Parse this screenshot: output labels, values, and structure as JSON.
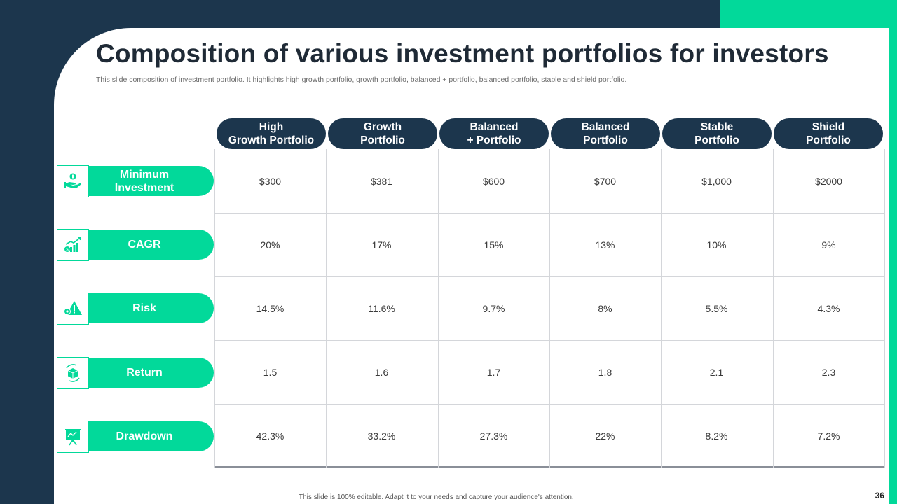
{
  "slide": {
    "title": "Composition of various investment portfolios for investors",
    "subtitle": "This slide composition of investment portfolio. It highlights high growth portfolio, growth portfolio, balanced + portfolio, balanced portfolio, stable and shield portfolio.",
    "footer": "This slide is 100% editable. Adapt it to your needs and capture your audience's attention.",
    "page_number": "36"
  },
  "colors": {
    "navy": "#1c364d",
    "green": "#02d99a"
  },
  "table": {
    "columns": [
      "High\nGrowth Portfolio",
      "Growth\nPortfolio",
      "Balanced\n+ Portfolio",
      "Balanced\nPortfolio",
      "Stable\nPortfolio",
      "Shield\nPortfolio"
    ],
    "rows": [
      {
        "label": "Minimum\nInvestment",
        "icon": "money-hand-icon",
        "values": [
          "$300",
          "$381",
          "$600",
          "$700",
          "$1,000",
          "$2000"
        ]
      },
      {
        "label": "CAGR",
        "icon": "growth-chart-icon",
        "values": [
          "20%",
          "17%",
          "15%",
          "13%",
          "10%",
          "9%"
        ]
      },
      {
        "label": "Risk",
        "icon": "warning-gear-icon",
        "values": [
          "14.5%",
          "11.6%",
          "9.7%",
          "8%",
          "5.5%",
          "4.3%"
        ]
      },
      {
        "label": "Return",
        "icon": "box-cycle-icon",
        "values": [
          "1.5",
          "1.6",
          "1.7",
          "1.8",
          "2.1",
          "2.3"
        ]
      },
      {
        "label": "Drawdown",
        "icon": "presentation-board-icon",
        "values": [
          "42.3%",
          "33.2%",
          "27.3%",
          "22%",
          "8.2%",
          "7.2%"
        ]
      }
    ]
  }
}
